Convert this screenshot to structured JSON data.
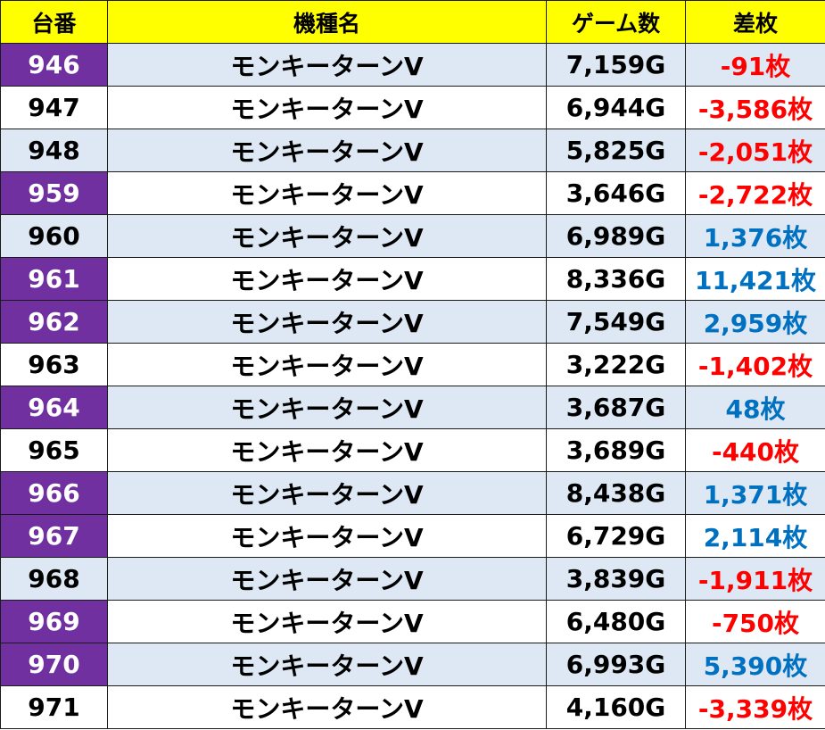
{
  "headers": {
    "machine_no": "台番",
    "model_name": "機種名",
    "games": "ゲーム数",
    "difference": "差枚"
  },
  "colors": {
    "header_bg": "#ffff00",
    "highlight_no_bg": "#7030a0",
    "shaded_row_bg": "#dde8f4",
    "positive_text": "#0070c0",
    "negative_text": "#ff0000"
  },
  "rows": [
    {
      "no": "946",
      "name": "モンキーターンV",
      "games": "7,159G",
      "diff": "-91枚",
      "highlight": true,
      "shaded": true,
      "sign": "neg"
    },
    {
      "no": "947",
      "name": "モンキーターンV",
      "games": "6,944G",
      "diff": "-3,586枚",
      "highlight": false,
      "shaded": false,
      "sign": "neg"
    },
    {
      "no": "948",
      "name": "モンキーターンV",
      "games": "5,825G",
      "diff": "-2,051枚",
      "highlight": false,
      "shaded": true,
      "sign": "neg"
    },
    {
      "no": "959",
      "name": "モンキーターンV",
      "games": "3,646G",
      "diff": "-2,722枚",
      "highlight": true,
      "shaded": false,
      "sign": "neg"
    },
    {
      "no": "960",
      "name": "モンキーターンV",
      "games": "6,989G",
      "diff": "1,376枚",
      "highlight": false,
      "shaded": true,
      "sign": "pos"
    },
    {
      "no": "961",
      "name": "モンキーターンV",
      "games": "8,336G",
      "diff": "11,421枚",
      "highlight": true,
      "shaded": false,
      "sign": "pos"
    },
    {
      "no": "962",
      "name": "モンキーターンV",
      "games": "7,549G",
      "diff": "2,959枚",
      "highlight": true,
      "shaded": true,
      "sign": "pos"
    },
    {
      "no": "963",
      "name": "モンキーターンV",
      "games": "3,222G",
      "diff": "-1,402枚",
      "highlight": false,
      "shaded": false,
      "sign": "neg"
    },
    {
      "no": "964",
      "name": "モンキーターンV",
      "games": "3,687G",
      "diff": "48枚",
      "highlight": true,
      "shaded": true,
      "sign": "pos"
    },
    {
      "no": "965",
      "name": "モンキーターンV",
      "games": "3,689G",
      "diff": "-440枚",
      "highlight": false,
      "shaded": false,
      "sign": "neg"
    },
    {
      "no": "966",
      "name": "モンキーターンV",
      "games": "8,438G",
      "diff": "1,371枚",
      "highlight": true,
      "shaded": true,
      "sign": "pos"
    },
    {
      "no": "967",
      "name": "モンキーターンV",
      "games": "6,729G",
      "diff": "2,114枚",
      "highlight": true,
      "shaded": false,
      "sign": "pos"
    },
    {
      "no": "968",
      "name": "モンキーターンV",
      "games": "3,839G",
      "diff": "-1,911枚",
      "highlight": false,
      "shaded": true,
      "sign": "neg"
    },
    {
      "no": "969",
      "name": "モンキーターンV",
      "games": "6,480G",
      "diff": "-750枚",
      "highlight": true,
      "shaded": false,
      "sign": "neg"
    },
    {
      "no": "970",
      "name": "モンキーターンV",
      "games": "6,993G",
      "diff": "5,390枚",
      "highlight": true,
      "shaded": true,
      "sign": "pos"
    },
    {
      "no": "971",
      "name": "モンキーターンV",
      "games": "4,160G",
      "diff": "-3,339枚",
      "highlight": false,
      "shaded": false,
      "sign": "neg"
    }
  ]
}
